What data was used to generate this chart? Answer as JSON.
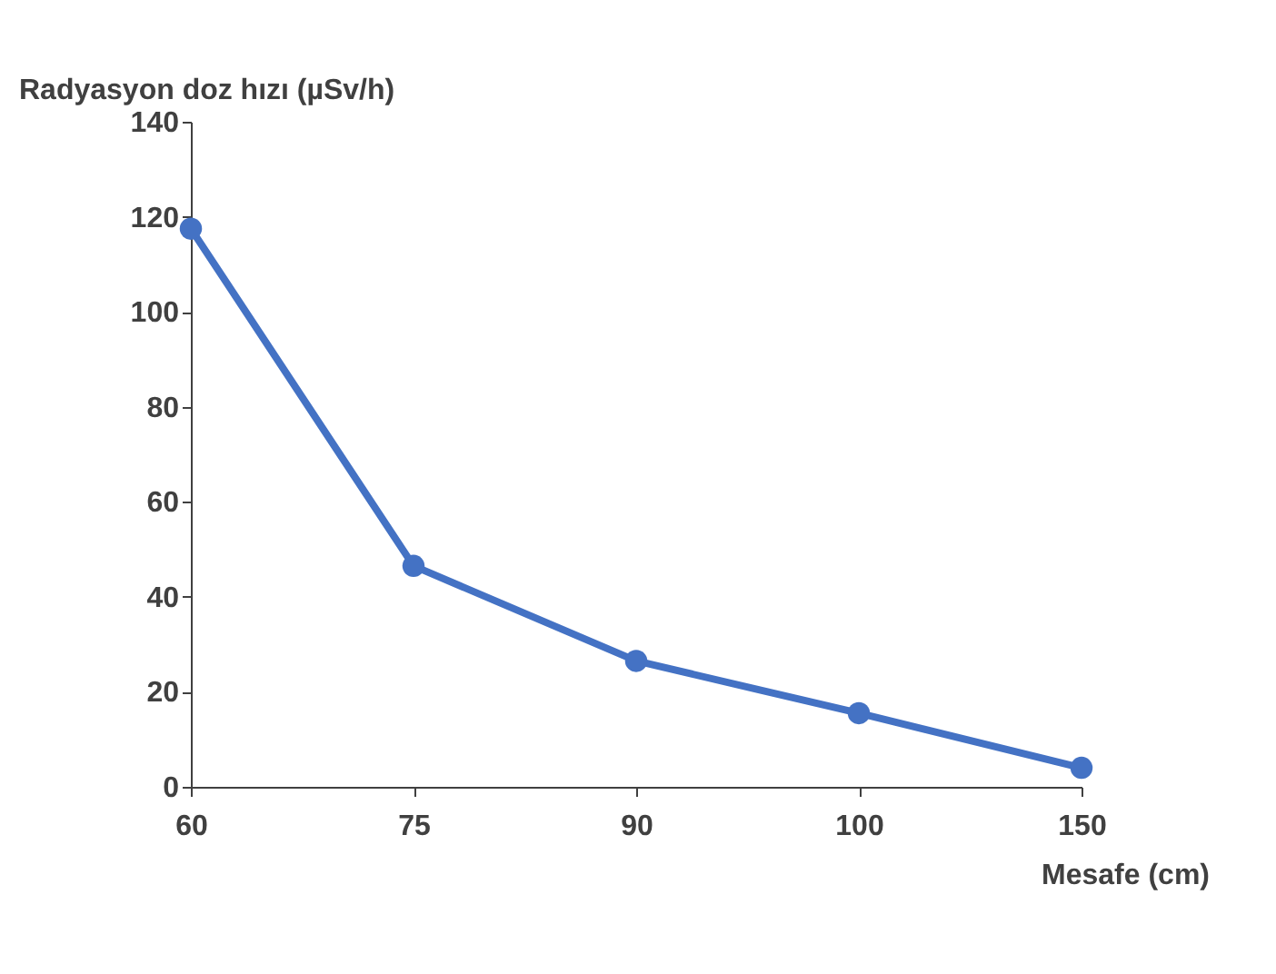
{
  "chart_data": {
    "type": "line",
    "xlabel": "Mesafe (cm)",
    "ylabel": "Radyasyon doz hızı (µSv/h)",
    "categories": [
      "60",
      "75",
      "90",
      "100",
      "150"
    ],
    "series": [
      {
        "color": "#4472c4",
        "values": [
          117.5,
          46.5,
          26.5,
          15.5,
          4
        ]
      }
    ],
    "ylim": [
      0,
      140
    ],
    "yticks": [
      0,
      20,
      40,
      60,
      80,
      100,
      120,
      140
    ],
    "grid": false,
    "marker": "circle",
    "line_style": "solid"
  }
}
